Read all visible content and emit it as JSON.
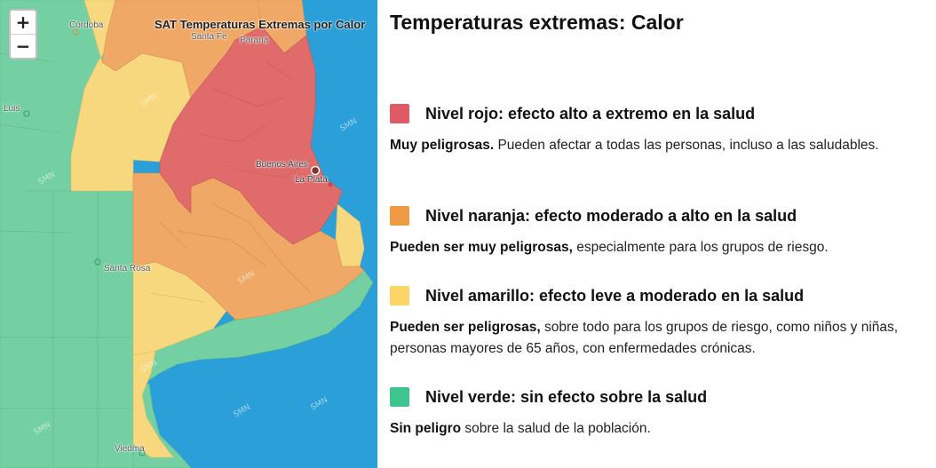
{
  "map": {
    "title": "SAT Temperaturas Extremas por Calor",
    "zoom_in": "+",
    "zoom_out": "−",
    "cities": [
      "Córdoba",
      "Santa Fe",
      "Paraná",
      "Luis",
      "Buenos Aires",
      "La Plata",
      "Santa Rosa",
      "Viedma"
    ],
    "watermark": "SMN",
    "colors": {
      "red": "#e06b6b",
      "orange": "#f0a866",
      "yellow": "#f7d87e",
      "green": "#74d0a2",
      "sea": "#2a9fd8"
    }
  },
  "legend": {
    "title": "Temperaturas extremas: Calor",
    "levels": [
      {
        "color": "#e05a66",
        "name": "Nivel rojo: efecto alto a extremo en la salud",
        "bold": "Muy peligrosas.",
        "text": " Pueden afectar a todas las personas, incluso a las saludables."
      },
      {
        "color": "#f09a44",
        "name": "Nivel naranja: efecto moderado a alto en la salud",
        "bold": "Pueden ser muy peligrosas,",
        "text": " especialmente para los grupos de riesgo."
      },
      {
        "color": "#fbd666",
        "name": "Nivel amarillo: efecto leve a moderado en la salud",
        "bold": "Pueden ser peligrosas,",
        "text": " sobre todo para los grupos de riesgo, como niños y niñas, personas mayores de 65 años, con enfermedades crónicas."
      },
      {
        "color": "#3ec48e",
        "name": "Nivel verde: sin efecto sobre la salud",
        "bold": "Sin peligro",
        "text": " sobre la salud de la población."
      }
    ]
  }
}
